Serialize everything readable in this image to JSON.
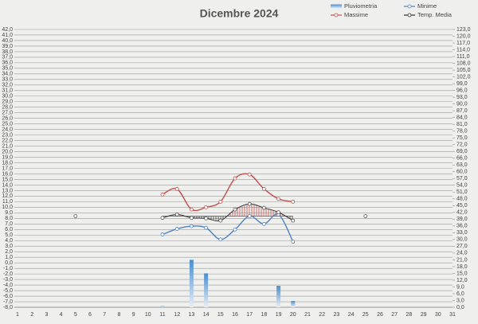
{
  "chart_data": {
    "type": "line",
    "title": "Dicembre 2024",
    "categories": [
      "1",
      "2",
      "3",
      "4",
      "5",
      "6",
      "7",
      "8",
      "9",
      "10",
      "11",
      "12",
      "13",
      "14",
      "15",
      "16",
      "17",
      "18",
      "19",
      "20",
      "21",
      "22",
      "23",
      "24",
      "25",
      "26",
      "27",
      "28",
      "29",
      "30",
      "31"
    ],
    "series": [
      {
        "name": "Pluviometria",
        "type": "bar",
        "axis": "y2",
        "color": "#5b9bd5",
        "values": [
          null,
          null,
          null,
          null,
          null,
          null,
          null,
          null,
          null,
          null,
          0.5,
          null,
          21,
          15,
          null,
          null,
          null,
          null,
          9.5,
          2.8,
          null,
          null,
          null,
          null,
          null,
          null,
          null,
          null,
          null,
          null,
          null
        ]
      },
      {
        "name": "Minime",
        "color": "#4f81bd",
        "values": [
          null,
          null,
          null,
          null,
          null,
          null,
          null,
          null,
          null,
          null,
          5.1,
          6.1,
          6.6,
          6.3,
          4.2,
          6.0,
          8.4,
          7.0,
          8.7,
          3.8,
          null,
          null,
          null,
          null,
          null,
          null,
          null,
          null,
          null,
          null,
          null
        ]
      },
      {
        "name": "Massime",
        "color": "#c0504d",
        "values": [
          null,
          null,
          null,
          null,
          null,
          null,
          null,
          null,
          null,
          null,
          12.3,
          13.3,
          9.6,
          10.0,
          11.0,
          15.2,
          15.9,
          13.3,
          11.5,
          11.0,
          null,
          null,
          null,
          null,
          null,
          null,
          null,
          null,
          null,
          null,
          null
        ]
      },
      {
        "name": "Temp. Media",
        "color": "#333333",
        "values": [
          null,
          null,
          null,
          null,
          null,
          null,
          null,
          null,
          null,
          null,
          8.1,
          8.7,
          8.1,
          8.0,
          7.6,
          9.6,
          10.6,
          9.9,
          9.1,
          7.6,
          null,
          null,
          null,
          null,
          null,
          null,
          null,
          null,
          null,
          null,
          null
        ]
      }
    ],
    "reference": {
      "value": 8.4,
      "color": "#555555",
      "marker_categories": [
        "5",
        "25"
      ],
      "above_color": "#c0504d",
      "below_color": "#333333"
    },
    "ylim": [
      -8,
      42
    ],
    "yticks": [
      {
        "value": -8,
        "label": "-8,0"
      },
      {
        "value": -7,
        "label": "-7,0"
      },
      {
        "value": -6,
        "label": "-6,0"
      },
      {
        "value": -5,
        "label": "-5,0"
      },
      {
        "value": -4,
        "label": "-4,0"
      },
      {
        "value": -3,
        "label": "-3,0"
      },
      {
        "value": -2,
        "label": "-2,0"
      },
      {
        "value": -1,
        "label": "-1,0"
      },
      {
        "value": 0,
        "label": "0,0"
      },
      {
        "value": 1,
        "label": "1,0"
      },
      {
        "value": 2,
        "label": "2,0"
      },
      {
        "value": 3,
        "label": "3,0"
      },
      {
        "value": 4,
        "label": "4,0"
      },
      {
        "value": 5,
        "label": "5,0"
      },
      {
        "value": 6,
        "label": "6,0"
      },
      {
        "value": 7,
        "label": "7,0"
      },
      {
        "value": 8,
        "label": "8,0"
      },
      {
        "value": 9,
        "label": "9,0"
      },
      {
        "value": 10,
        "label": "10,0"
      },
      {
        "value": 11,
        "label": "11,0"
      },
      {
        "value": 12,
        "label": "12,0"
      },
      {
        "value": 13,
        "label": "13,0"
      },
      {
        "value": 14,
        "label": "14,0"
      },
      {
        "value": 15,
        "label": "15,0"
      },
      {
        "value": 16,
        "label": "16,0"
      },
      {
        "value": 17,
        "label": "17,0"
      },
      {
        "value": 18,
        "label": "18,0"
      },
      {
        "value": 19,
        "label": "19,0"
      },
      {
        "value": 20,
        "label": "20,0"
      },
      {
        "value": 21,
        "label": "21,0"
      },
      {
        "value": 22,
        "label": "22,0"
      },
      {
        "value": 23,
        "label": "23,0"
      },
      {
        "value": 24,
        "label": "24,0"
      },
      {
        "value": 25,
        "label": "25,0"
      },
      {
        "value": 26,
        "label": "26,0"
      },
      {
        "value": 27,
        "label": "27,0"
      },
      {
        "value": 28,
        "label": "28,0"
      },
      {
        "value": 29,
        "label": "29,0"
      },
      {
        "value": 30,
        "label": "30,0"
      },
      {
        "value": 31,
        "label": "31,0"
      },
      {
        "value": 32,
        "label": "32,0"
      },
      {
        "value": 33,
        "label": "33,0"
      },
      {
        "value": 34,
        "label": "34,0"
      },
      {
        "value": 35,
        "label": "35,0"
      },
      {
        "value": 36,
        "label": "36,0"
      },
      {
        "value": 37,
        "label": "37,0"
      },
      {
        "value": 38,
        "label": "38,0"
      },
      {
        "value": 39,
        "label": "39,0"
      },
      {
        "value": 40,
        "label": "40,0"
      },
      {
        "value": 41,
        "label": "41,0"
      },
      {
        "value": 42,
        "label": "42,0"
      }
    ],
    "y2lim": [
      0,
      123
    ],
    "y2ticks": [
      {
        "value": 0,
        "label": "0,0"
      },
      {
        "value": 3,
        "label": "3,0"
      },
      {
        "value": 6,
        "label": "6,0"
      },
      {
        "value": 9,
        "label": "9,0"
      },
      {
        "value": 12,
        "label": "12,0"
      },
      {
        "value": 15,
        "label": "15,0"
      },
      {
        "value": 18,
        "label": "18,0"
      },
      {
        "value": 21,
        "label": "21,0"
      },
      {
        "value": 24,
        "label": "24,0"
      },
      {
        "value": 27,
        "label": "27,0"
      },
      {
        "value": 30,
        "label": "30,0"
      },
      {
        "value": 33,
        "label": "33,0"
      },
      {
        "value": 36,
        "label": "36,0"
      },
      {
        "value": 39,
        "label": "39,0"
      },
      {
        "value": 42,
        "label": "42,0"
      },
      {
        "value": 45,
        "label": "45,0"
      },
      {
        "value": 48,
        "label": "48,0"
      },
      {
        "value": 51,
        "label": "51,0"
      },
      {
        "value": 54,
        "label": "54,0"
      },
      {
        "value": 57,
        "label": "57,0"
      },
      {
        "value": 60,
        "label": "60,0"
      },
      {
        "value": 63,
        "label": "63,0"
      },
      {
        "value": 66,
        "label": "66,0"
      },
      {
        "value": 69,
        "label": "69,0"
      },
      {
        "value": 72,
        "label": "72,0"
      },
      {
        "value": 75,
        "label": "75,0"
      },
      {
        "value": 78,
        "label": "78,0"
      },
      {
        "value": 81,
        "label": "81,0"
      },
      {
        "value": 84,
        "label": "84,0"
      },
      {
        "value": 87,
        "label": "87,0"
      },
      {
        "value": 90,
        "label": "90,0"
      },
      {
        "value": 93,
        "label": "93,0"
      },
      {
        "value": 96,
        "label": "96,0"
      },
      {
        "value": 99,
        "label": "99,0"
      },
      {
        "value": 102,
        "label": "102,0"
      },
      {
        "value": 105,
        "label": "105,0"
      },
      {
        "value": 108,
        "label": "108,0"
      },
      {
        "value": 111,
        "label": "111,0"
      },
      {
        "value": 114,
        "label": "114,0"
      },
      {
        "value": 117,
        "label": "117,0"
      },
      {
        "value": 120,
        "label": "120,0"
      },
      {
        "value": 123,
        "label": "123,0"
      }
    ],
    "grid": true
  }
}
